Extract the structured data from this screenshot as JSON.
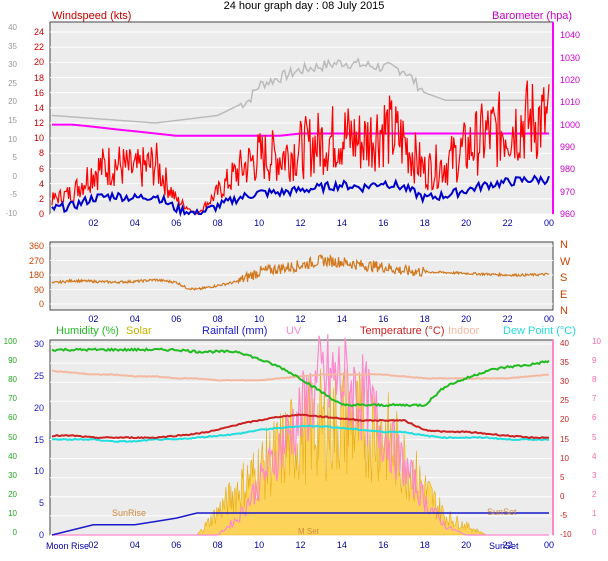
{
  "title": "24 hour graph day : 08 July 2015",
  "colors": {
    "wind": "#ff0000",
    "gust": "#c00000",
    "avg": "#0000cc",
    "baro": "#ff00ff",
    "temp_hist": "#bbbbbb",
    "direction": "#d2781e",
    "humidity": "#22bb22",
    "solar": "#ffd24a",
    "uv": "#ff88cc",
    "temperature": "#cc2222",
    "indoor": "#f4b8a0",
    "dewpoint": "#22dddd",
    "rainfall": "#1a1acc"
  },
  "panels": {
    "wind": {
      "left_title": "Windspeed (kts)",
      "right_title": "Barometer (hpa)",
      "left_outer_ticks": [
        "40",
        "35",
        "30",
        "25",
        "20",
        "15",
        "10",
        "5",
        "0",
        "-5",
        "-10"
      ],
      "left_ticks": [
        "24",
        "22",
        "20",
        "18",
        "16",
        "14",
        "12",
        "10",
        "8",
        "6",
        "4",
        "2",
        "0"
      ],
      "right_ticks": [
        "1040",
        "1030",
        "1020",
        "1010",
        "1000",
        "990",
        "980",
        "970",
        "960"
      ],
      "x_ticks": [
        "02",
        "04",
        "06",
        "08",
        "10",
        "12",
        "14",
        "16",
        "18",
        "20",
        "22",
        "00"
      ]
    },
    "direction": {
      "left_ticks": [
        "360",
        "270",
        "180",
        "90",
        "0"
      ],
      "right_ticks": [
        "N",
        "W",
        "S",
        "E",
        "N"
      ],
      "x_ticks": [
        "02",
        "04",
        "06",
        "08",
        "10",
        "12",
        "14",
        "16",
        "18",
        "20",
        "22",
        "00"
      ]
    },
    "temp": {
      "legend": [
        {
          "text": "Humidity (%)",
          "color": "#22bb22"
        },
        {
          "text": "Solar",
          "color": "#c8b400"
        },
        {
          "text": "Rainfall (mm)",
          "color": "#1a1acc"
        },
        {
          "text": "UV",
          "color": "#ff88cc"
        },
        {
          "text": "Temperature (°C)",
          "color": "#cc2222"
        },
        {
          "text": "Indoor",
          "color": "#f4b8a0"
        },
        {
          "text": "Dew Point (°C)",
          "color": "#22dddd"
        }
      ],
      "left_outer_ticks": [
        "100",
        "90",
        "80",
        "70",
        "60",
        "50",
        "40",
        "30",
        "20",
        "10",
        "0"
      ],
      "left_ticks": [
        "30",
        "25",
        "20",
        "15",
        "10",
        "5",
        "0"
      ],
      "right_ticks": [
        "40",
        "35",
        "30",
        "25",
        "20",
        "15",
        "10",
        "5",
        "0",
        "-5",
        "-10"
      ],
      "right_outer_ticks": [
        "10",
        "9",
        "8",
        "7",
        "6",
        "5",
        "4",
        "3",
        "2",
        "1",
        "0"
      ],
      "x_ticks": [
        "02",
        "04",
        "06",
        "08",
        "10",
        "12",
        "14",
        "16",
        "18",
        "20",
        "22",
        "00"
      ],
      "annotations": {
        "moon_rise": "Moon Rise",
        "sun_rise": "SunRise",
        "sun_set": "SunSet",
        "sun_set_axis": "SunSet",
        "moon_set": "M Set"
      }
    }
  },
  "chart_data": [
    {
      "type": "line",
      "title": "Windspeed (kts) / Barometer (hpa)",
      "x": [
        0,
        1,
        2,
        3,
        4,
        5,
        6,
        7,
        8,
        9,
        10,
        11,
        12,
        13,
        14,
        15,
        16,
        17,
        18,
        19,
        20,
        21,
        22,
        23,
        24
      ],
      "series": [
        {
          "name": "Windspeed (kts)",
          "values": [
            2,
            3,
            6,
            7,
            6,
            7,
            2,
            0,
            3,
            6,
            8,
            8,
            9,
            10,
            11,
            10,
            12,
            10,
            6,
            7,
            9,
            11,
            12,
            13,
            13
          ]
        },
        {
          "name": "Barometer (hpa)",
          "values": [
            1000,
            1000,
            999,
            998,
            997,
            996,
            995,
            995,
            995,
            995,
            995,
            995,
            996,
            996,
            996,
            996,
            996,
            996,
            996,
            996,
            996,
            996,
            996,
            996,
            996
          ]
        }
      ],
      "ylim": [
        0,
        24
      ],
      "y2lim": [
        960,
        1045
      ]
    },
    {
      "type": "scatter",
      "x": [
        0,
        1,
        2,
        3,
        4,
        5,
        6,
        6.5,
        7,
        8,
        9,
        10,
        11,
        12,
        13,
        14,
        15,
        16,
        17,
        18,
        19,
        20,
        21,
        22,
        23,
        24
      ],
      "series": [
        {
          "values": [
            130,
            145,
            140,
            135,
            140,
            150,
            135,
            100,
            90,
            115,
            140,
            200,
            220,
            240,
            270,
            260,
            240,
            230,
            205,
            200,
            195,
            190,
            185,
            180,
            180,
            185
          ]
        }
      ],
      "ylim": [
        0,
        360
      ]
    },
    {
      "type": "line",
      "x": [
        0,
        1,
        2,
        3,
        4,
        5,
        6,
        7,
        8,
        9,
        10,
        11,
        12,
        13,
        14,
        15,
        16,
        17,
        18,
        19,
        20,
        21,
        22,
        23,
        24
      ],
      "series": [
        {
          "name": "Humidity (%)",
          "values": [
            97,
            97,
            97,
            97,
            97,
            97,
            97,
            96,
            96,
            96,
            92,
            88,
            82,
            75,
            68,
            68,
            68,
            68,
            68,
            78,
            82,
            86,
            88,
            89,
            91
          ]
        },
        {
          "name": "Temperature (°C)",
          "values": [
            16,
            16,
            15.5,
            15.5,
            15.5,
            15.5,
            16,
            16.5,
            17.5,
            19,
            20,
            21,
            21.5,
            21,
            20.5,
            20,
            20,
            20,
            17.5,
            17,
            17,
            16.5,
            16,
            15.5,
            15.5
          ]
        },
        {
          "name": "Dew Point (°C)",
          "values": [
            15,
            15,
            15,
            14.5,
            14.5,
            15,
            15,
            15.5,
            16,
            16.5,
            17.5,
            18,
            18.5,
            18.5,
            18,
            17.5,
            17,
            17,
            16,
            15.5,
            15.5,
            15.5,
            15,
            15,
            15
          ]
        },
        {
          "name": "Indoor",
          "values": [
            33,
            32.5,
            32,
            32,
            31.5,
            31.5,
            31,
            31,
            30.5,
            30.5,
            30.5,
            31,
            31.5,
            32,
            32,
            32,
            32,
            31.5,
            31,
            31,
            31,
            31,
            31,
            31.5,
            32
          ]
        },
        {
          "name": "Rainfall (mm)",
          "values": [
            0,
            0.3,
            0.6,
            0.6,
            0.6,
            0.8,
            1.0,
            1.3,
            1.3,
            1.3,
            1.3,
            1.3,
            1.3,
            1.3,
            1.3,
            1.3,
            1.3,
            1.3,
            1.3,
            1.3,
            1.3,
            1.3,
            1.3,
            1.3,
            1.3
          ]
        },
        {
          "name": "Solar",
          "values": [
            0,
            0,
            0,
            0,
            0,
            0,
            0,
            0,
            5,
            10,
            14,
            18,
            22,
            24,
            25,
            24,
            22,
            16,
            10,
            4,
            2,
            0,
            0,
            0,
            0
          ]
        },
        {
          "name": "UV",
          "values": [
            0,
            0,
            0,
            0,
            0,
            0,
            0,
            0,
            0,
            1,
            3,
            5,
            7,
            9,
            9,
            8,
            6,
            4,
            2,
            0.5,
            0,
            0,
            0,
            0,
            0
          ]
        }
      ],
      "ylim": [
        0,
        30
      ],
      "y2lim": [
        -10,
        40
      ]
    }
  ]
}
